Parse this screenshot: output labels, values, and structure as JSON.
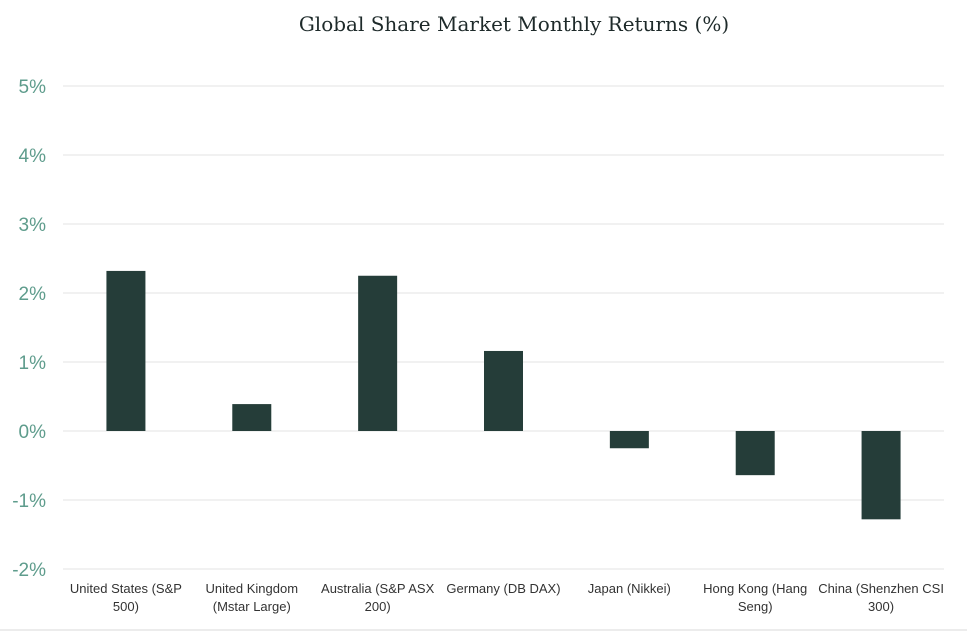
{
  "chart_data": {
    "type": "bar",
    "title": "Global Share Market Monthly Returns (%)",
    "xlabel": "",
    "ylabel": "",
    "categories": [
      [
        "United States (S&P",
        "500)"
      ],
      [
        "United Kingdom",
        "(Mstar Large)"
      ],
      [
        "Australia (S&P ASX",
        "200)"
      ],
      [
        "Germany (DB DAX)"
      ],
      [
        "Japan (Nikkei)"
      ],
      [
        "Hong Kong (Hang",
        "Seng)"
      ],
      [
        "China (Shenzhen CSI",
        "300)"
      ]
    ],
    "values": [
      2.32,
      0.39,
      2.25,
      1.16,
      -0.25,
      -0.64,
      -1.28
    ],
    "ylim": [
      -2,
      5
    ],
    "yticks": [
      {
        "value": 5,
        "label": "5%"
      },
      {
        "value": 4,
        "label": "4%"
      },
      {
        "value": 3,
        "label": "3%"
      },
      {
        "value": 2,
        "label": "2%"
      },
      {
        "value": 1,
        "label": "1%"
      },
      {
        "value": 0,
        "label": "0%"
      },
      {
        "value": -1,
        "label": "-1%"
      },
      {
        "value": -2,
        "label": "-2%"
      }
    ],
    "grid": true,
    "legend": "none",
    "colors": {
      "bar": "#253d39",
      "tick_label": "#5e9c8c",
      "grid": "#e3e3e3"
    }
  }
}
